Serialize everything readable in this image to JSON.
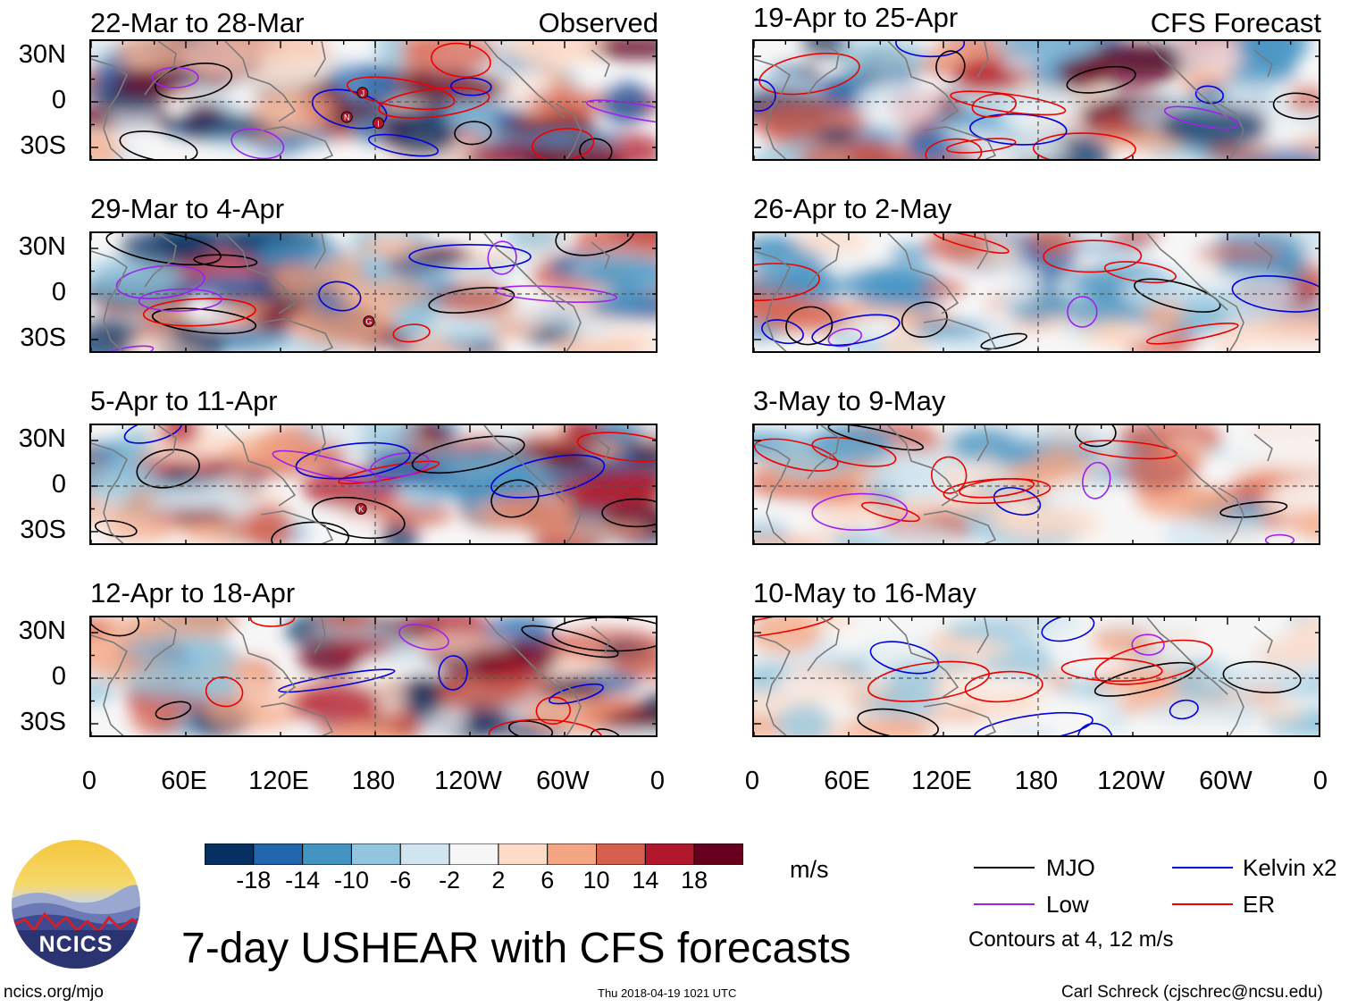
{
  "chart_data": {
    "type": "heatmap",
    "title": "7-day USHEAR with CFS forecasts",
    "units": "m/s",
    "column_titles": [
      "Observed",
      "CFS Forecast"
    ],
    "lat_ticks": [
      "30N",
      "0",
      "30S"
    ],
    "lon_ticks": [
      "0",
      "60E",
      "120E",
      "180",
      "120W",
      "60W",
      "0"
    ],
    "colorbar": {
      "ticks": [
        "-18",
        "-14",
        "-10",
        "-6",
        "-2",
        "2",
        "6",
        "10",
        "14",
        "18"
      ],
      "colors": [
        "#053061",
        "#2166ac",
        "#4393c3",
        "#92c5de",
        "#d1e5f0",
        "#f7f7f7",
        "#fddbc7",
        "#f4a582",
        "#d6604d",
        "#b2182b",
        "#67001f"
      ]
    },
    "panels": [
      {
        "period": "22-Mar to 28-Mar",
        "kind": "Observed",
        "seed": 11,
        "storms": [
          {
            "label": "J",
            "lon": 172,
            "lat": 6
          },
          {
            "label": "N",
            "lon": 162,
            "lat": -10
          },
          {
            "label": "I",
            "lon": 182,
            "lat": -14
          }
        ]
      },
      {
        "period": "29-Mar to 4-Apr",
        "kind": "Observed",
        "seed": 23,
        "storms": [
          {
            "label": "G",
            "lon": 176,
            "lat": -18
          }
        ]
      },
      {
        "period": "5-Apr to 11-Apr",
        "kind": "Observed",
        "seed": 37,
        "storms": [
          {
            "label": "K",
            "lon": 171,
            "lat": -15
          }
        ]
      },
      {
        "period": "12-Apr to 18-Apr",
        "kind": "Observed",
        "seed": 41,
        "storms": []
      },
      {
        "period": "19-Apr to 25-Apr",
        "kind": "CFS Forecast",
        "seed": 53,
        "storms": []
      },
      {
        "period": "26-Apr to 2-May",
        "kind": "CFS Forecast",
        "seed": 67,
        "storms": []
      },
      {
        "period": "3-May to 9-May",
        "kind": "CFS Forecast",
        "seed": 79,
        "storms": []
      },
      {
        "period": "10-May to 16-May",
        "kind": "CFS Forecast",
        "seed": 83,
        "storms": []
      }
    ],
    "legend": [
      {
        "name": "MJO",
        "color": "#000000"
      },
      {
        "name": "Kelvin x2",
        "color": "#0000dd"
      },
      {
        "name": "Low",
        "color": "#a020f0"
      },
      {
        "name": "ER",
        "color": "#ee0000"
      }
    ],
    "contour_note": "Contours at 4, 12 m/s"
  },
  "logo": {
    "text": "NCICS"
  },
  "footer": {
    "website": "ncics.org/mjo",
    "timestamp": "Thu 2018-04-19 1021 UTC",
    "author": "Carl Schreck (cjschrec@ncsu.edu)"
  }
}
